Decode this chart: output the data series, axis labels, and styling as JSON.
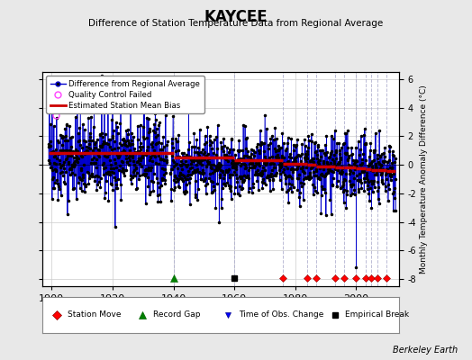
{
  "title": "KAYCEE",
  "subtitle": "Difference of Station Temperature Data from Regional Average",
  "ylabel": "Monthly Temperature Anomaly Difference (°C)",
  "attribution": "Berkeley Earth",
  "bg_color": "#e8e8e8",
  "plot_bg_color": "#ffffff",
  "ylim": [
    -8.5,
    6.5
  ],
  "xlim": [
    1897,
    2014
  ],
  "yticks": [
    -8,
    -6,
    -4,
    -2,
    0,
    2,
    4,
    6
  ],
  "xticks": [
    1900,
    1920,
    1940,
    1960,
    1980,
    2000
  ],
  "grid_color": "#cccccc",
  "line_color": "#0000cc",
  "marker_color": "#000000",
  "qc_color": "#ff00ff",
  "bias_color": "#cc0000",
  "vline_color": "#aaaacc",
  "vline_times": [
    1940,
    1960,
    1976,
    1984,
    1987,
    1993,
    1996,
    2000,
    2003,
    2005,
    2007,
    2010
  ],
  "station_move_times": [
    1976,
    1984,
    1987,
    1993,
    1996,
    2000,
    2003,
    2005,
    2007,
    2010
  ],
  "record_gap_times": [
    1940
  ],
  "tobs_change_times": [],
  "empirical_break_times": [
    1960
  ],
  "bias_segments": [
    {
      "x_start": 1899,
      "x_end": 1940,
      "bias": 0.8
    },
    {
      "x_start": 1940,
      "x_end": 1960,
      "bias": 0.5
    },
    {
      "x_start": 1960,
      "x_end": 1976,
      "bias": 0.3
    },
    {
      "x_start": 1976,
      "x_end": 1984,
      "bias": 0.1
    },
    {
      "x_start": 1984,
      "x_end": 1987,
      "bias": 0.0
    },
    {
      "x_start": 1987,
      "x_end": 1993,
      "bias": -0.1
    },
    {
      "x_start": 1993,
      "x_end": 1996,
      "bias": -0.15
    },
    {
      "x_start": 1996,
      "x_end": 2000,
      "bias": -0.2
    },
    {
      "x_start": 2000,
      "x_end": 2003,
      "bias": -0.25
    },
    {
      "x_start": 2003,
      "x_end": 2005,
      "bias": -0.3
    },
    {
      "x_start": 2005,
      "x_end": 2007,
      "bias": -0.35
    },
    {
      "x_start": 2007,
      "x_end": 2010,
      "bias": -0.4
    },
    {
      "x_start": 2010,
      "x_end": 2013,
      "bias": -0.45
    }
  ],
  "qc_points": [
    {
      "t": 1899.3,
      "v": 4.2
    },
    {
      "t": 1901.5,
      "v": 3.5
    }
  ],
  "early_start": 1899,
  "early_end": 1938,
  "main_start": 1939,
  "main_end": 2013,
  "noise_seed": 42
}
